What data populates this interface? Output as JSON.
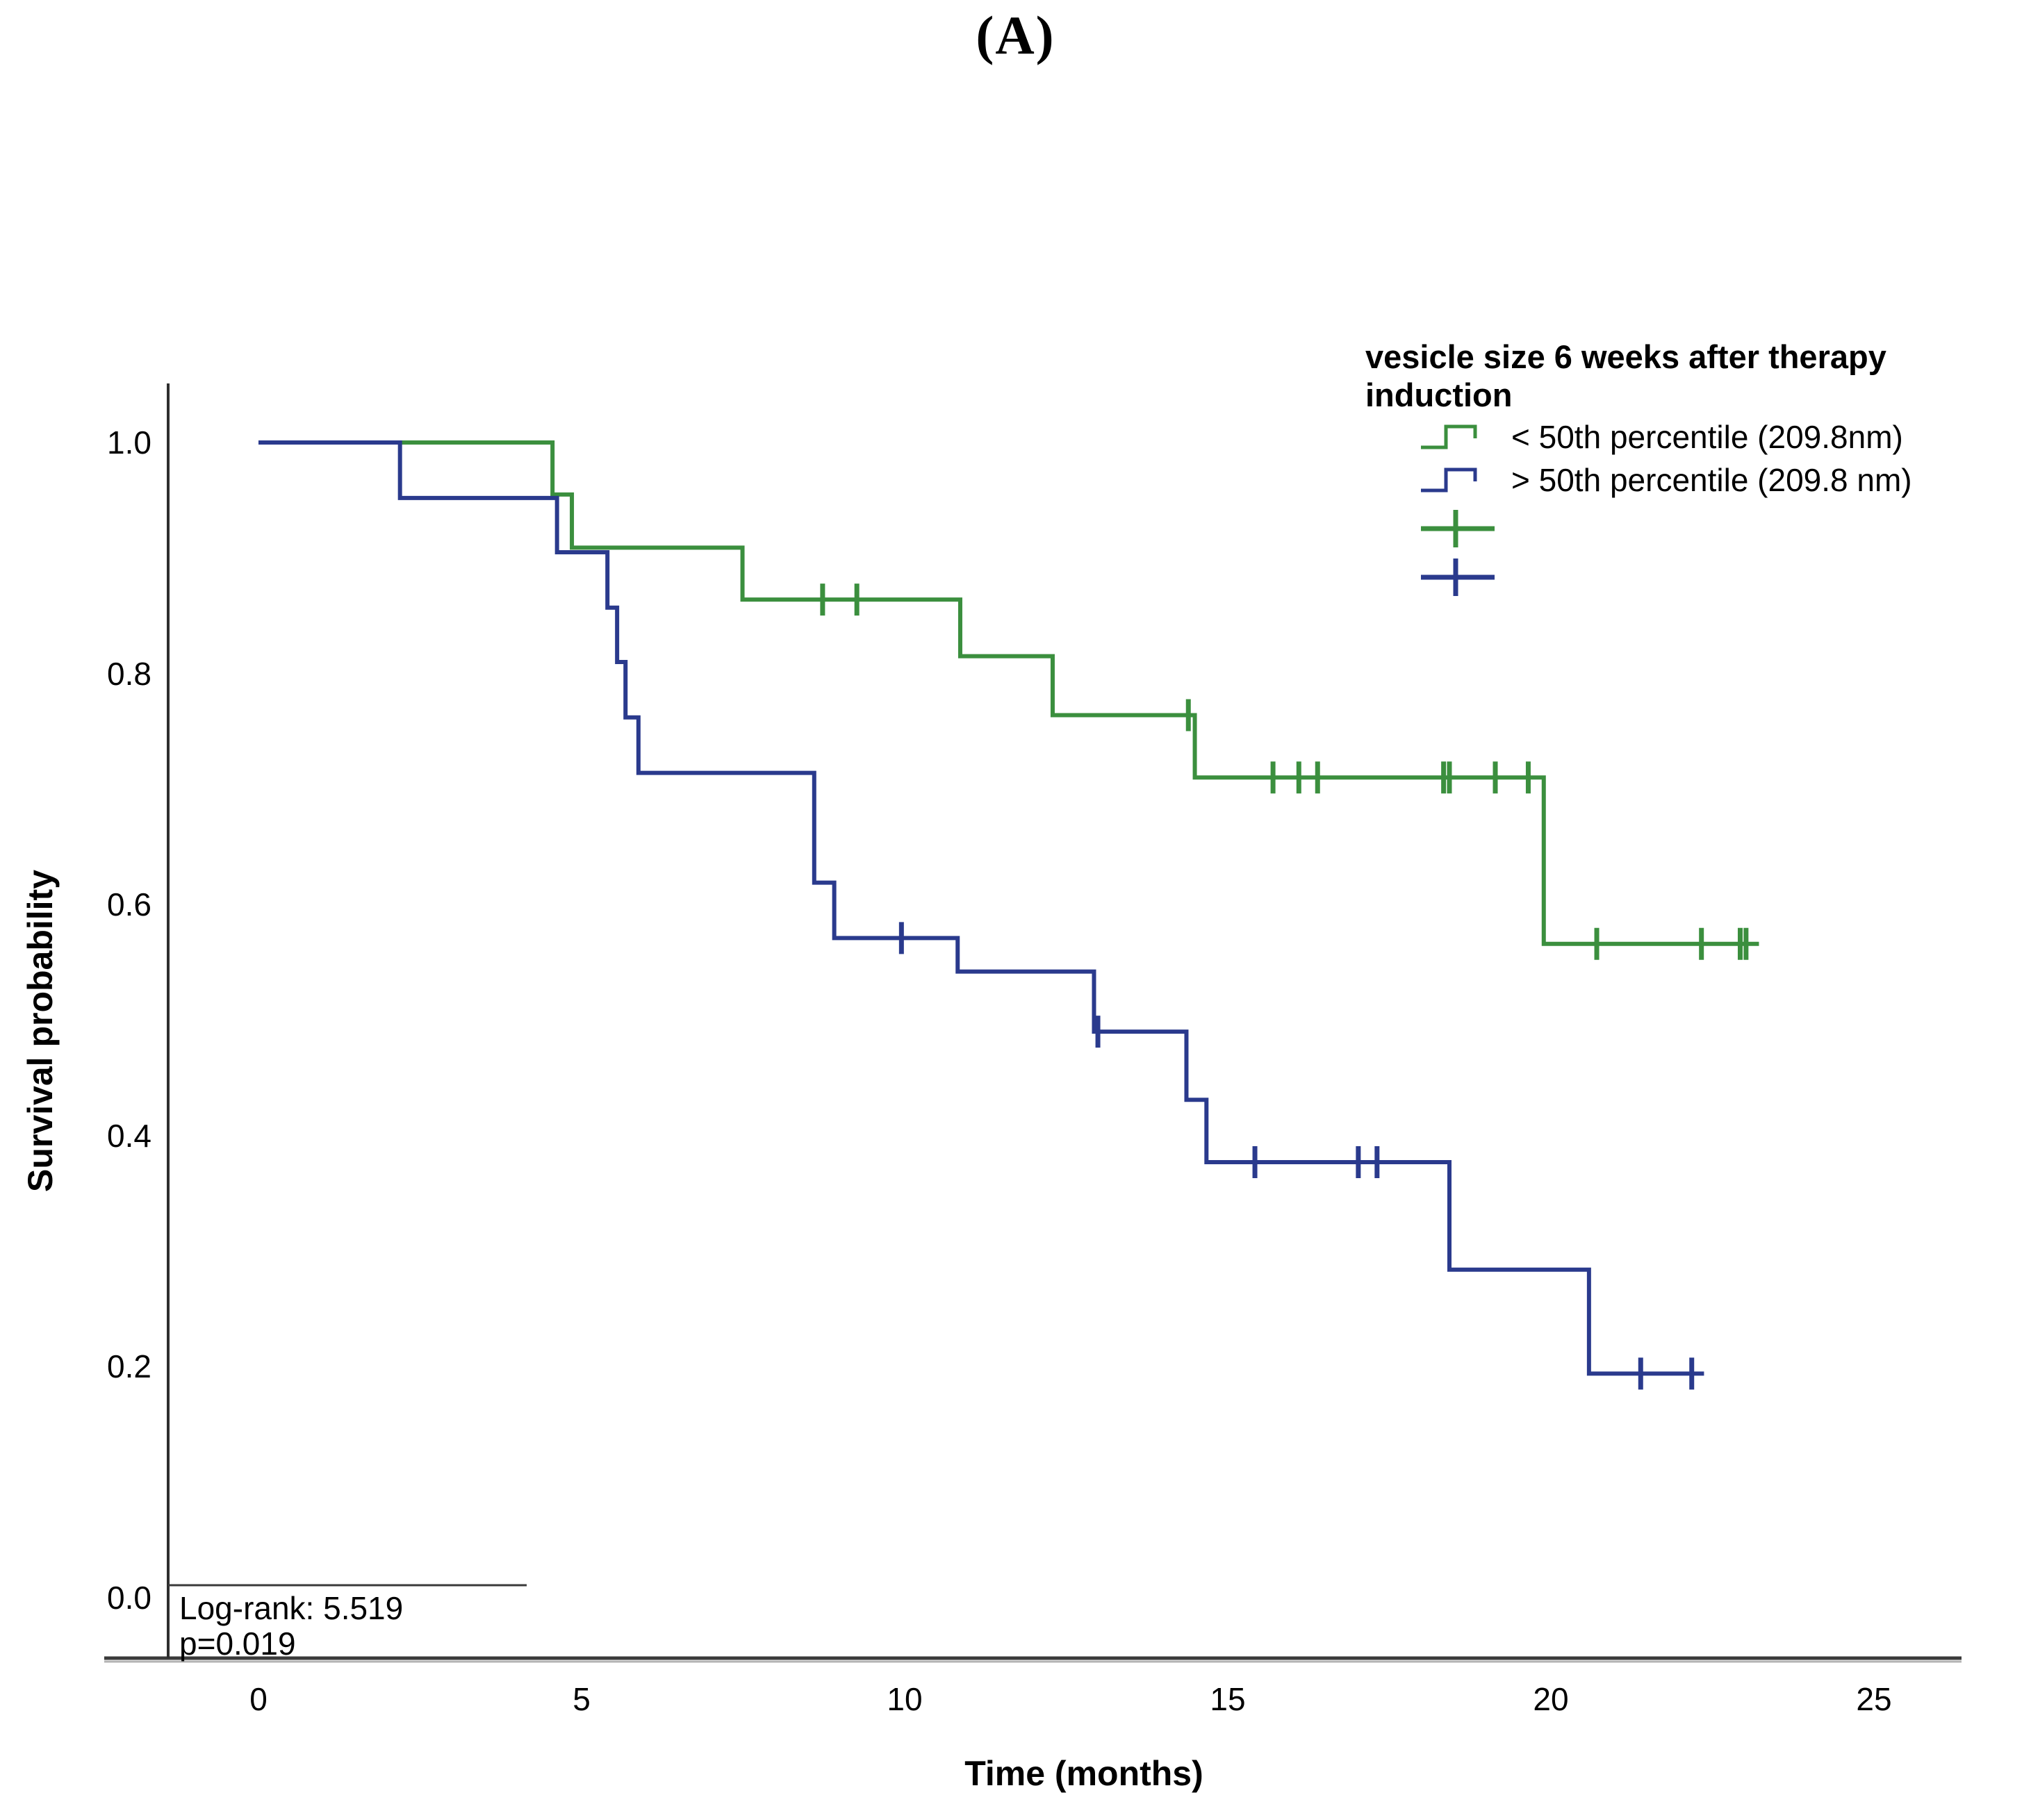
{
  "figure_label": "(A)",
  "y_axis": {
    "label": "Survival probability",
    "ticks": [
      {
        "label": "0.0",
        "value": 0.0
      },
      {
        "label": "0.2",
        "value": 0.2
      },
      {
        "label": "0.4",
        "value": 0.4
      },
      {
        "label": "0.6",
        "value": 0.6
      },
      {
        "label": "0.8",
        "value": 0.8
      },
      {
        "label": "1.0",
        "value": 1.0
      }
    ]
  },
  "x_axis": {
    "label": "Time (months)",
    "ticks": [
      {
        "label": "0",
        "value": 0
      },
      {
        "label": "5",
        "value": 5
      },
      {
        "label": "10",
        "value": 10
      },
      {
        "label": "15",
        "value": 15
      },
      {
        "label": "20",
        "value": 20
      },
      {
        "label": "25",
        "value": 25
      }
    ]
  },
  "annotation": {
    "line1": "Log-rank: 5.519",
    "line2": "p=0.019"
  },
  "legend": {
    "title_line1": "vesicle size 6 weeks after therapy",
    "title_line2": "induction",
    "items": [
      {
        "label": "< 50th percentile (209.8nm)",
        "color": "#3b8f3e"
      },
      {
        "label": "> 50th percentile (209.8 nm)",
        "color": "#2a3a8d"
      }
    ],
    "censor_symbols": [
      {
        "name": "censored-below-median",
        "color": "#3b8f3e"
      },
      {
        "name": "censored-above-median",
        "color": "#2a3a8d"
      }
    ]
  },
  "chart_data": {
    "type": "line",
    "subtype": "kaplan-meier-step",
    "title": "(A)",
    "xlabel": "Time (months)",
    "ylabel": "Survival probability",
    "xlim": [
      0,
      25
    ],
    "ylim": [
      0.0,
      1.0
    ],
    "grid": false,
    "legend_position": "top-right",
    "log_rank": "5.519",
    "p_value": "0.019",
    "series": [
      {
        "name": "< 50th percentile (209.8nm)",
        "color": "#3b8f3e",
        "steps": [
          [
            0,
            1.0
          ],
          [
            4.55,
            0.955
          ],
          [
            4.85,
            0.909
          ],
          [
            7.49,
            0.864
          ],
          [
            10.86,
            0.815
          ],
          [
            12.29,
            0.764
          ],
          [
            14.49,
            0.71
          ],
          [
            19.89,
            0.566
          ]
        ],
        "end_time": 23.22,
        "censors": [
          [
            8.73,
            0.864
          ],
          [
            9.26,
            0.864
          ],
          [
            14.39,
            0.764
          ],
          [
            15.7,
            0.71
          ],
          [
            16.1,
            0.71
          ],
          [
            16.39,
            0.71
          ],
          [
            18.34,
            0.71
          ],
          [
            18.43,
            0.71
          ],
          [
            19.14,
            0.71
          ],
          [
            19.65,
            0.71
          ],
          [
            20.71,
            0.566
          ],
          [
            22.33,
            0.566
          ],
          [
            22.93,
            0.566
          ],
          [
            23.02,
            0.566
          ]
        ]
      },
      {
        "name": "> 50th percentile (209.8 nm)",
        "color": "#2a3a8d",
        "steps": [
          [
            0,
            1.0
          ],
          [
            2.19,
            0.952
          ],
          [
            4.62,
            0.905
          ],
          [
            5.4,
            0.857
          ],
          [
            5.55,
            0.81
          ],
          [
            5.68,
            0.762
          ],
          [
            5.88,
            0.714
          ],
          [
            8.6,
            0.619
          ],
          [
            8.91,
            0.571
          ],
          [
            10.82,
            0.542
          ],
          [
            12.93,
            0.49
          ],
          [
            14.36,
            0.431
          ],
          [
            14.67,
            0.377
          ],
          [
            18.43,
            0.284
          ],
          [
            20.59,
            0.194
          ]
        ],
        "end_time": 22.37,
        "censors": [
          [
            9.95,
            0.571
          ],
          [
            12.99,
            0.49
          ],
          [
            15.42,
            0.377
          ],
          [
            17.02,
            0.377
          ],
          [
            17.31,
            0.377
          ],
          [
            21.39,
            0.194
          ],
          [
            22.18,
            0.194
          ]
        ]
      }
    ]
  }
}
